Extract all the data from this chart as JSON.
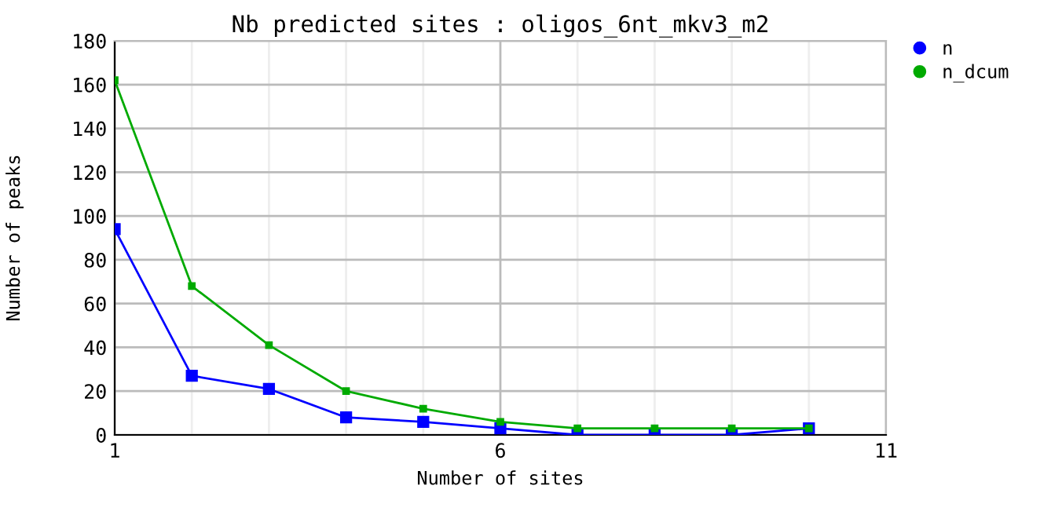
{
  "chart_data": {
    "type": "line",
    "title": "Nb predicted sites : oligos_6nt_mkv3_m2",
    "xlabel": "Number of sites",
    "ylabel": "Number of peaks",
    "x": [
      1,
      2,
      3,
      4,
      5,
      6,
      7,
      8,
      9,
      10
    ],
    "series": [
      {
        "name": "n",
        "color": "#0000ff",
        "values": [
          94,
          27,
          21,
          8,
          6,
          3,
          0,
          0,
          0,
          3
        ]
      },
      {
        "name": "n_dcum",
        "color": "#00aa00",
        "values": [
          162,
          68,
          41,
          20,
          12,
          6,
          3,
          3,
          3,
          3
        ]
      }
    ],
    "xlim": [
      1,
      11
    ],
    "xticks": [
      1,
      {
        "value": 2,
        "label": null
      },
      {
        "value": 3,
        "label": null
      },
      {
        "value": 4,
        "label": null
      },
      {
        "value": 5,
        "label": null
      },
      6,
      {
        "value": 7,
        "label": null
      },
      {
        "value": 8,
        "label": null
      },
      {
        "value": 9,
        "label": null
      },
      {
        "value": 10,
        "label": null
      },
      11
    ],
    "ylim": [
      0,
      180
    ],
    "yticks": [
      0,
      20,
      40,
      60,
      80,
      100,
      120,
      140,
      160,
      180
    ],
    "grid": true,
    "legend": "top right",
    "marker": "square",
    "line_style": "solid"
  }
}
